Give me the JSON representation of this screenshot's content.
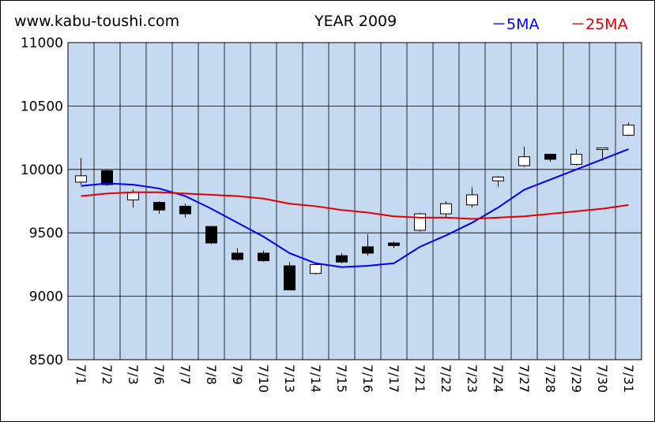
{
  "header": {
    "site": "www.kabu-toushi.com",
    "title": "YEAR 2009",
    "legend_5ma": "－5MA",
    "legend_25ma": "－25MA"
  },
  "colors": {
    "plot_bg": "#c5d9f1",
    "ma5": "#0000ff",
    "ma25": "#e00000",
    "up_candle": "#ffffff",
    "down_candle": "#000000"
  },
  "chart_data": {
    "type": "candlestick",
    "title": "YEAR 2009",
    "ylim": [
      8500,
      11000
    ],
    "yticks": [
      8500,
      9000,
      9500,
      10000,
      10500,
      11000
    ],
    "grid": true,
    "legend_position": "top-right",
    "categories": [
      "7/1",
      "7/2",
      "7/3",
      "7/6",
      "7/7",
      "7/8",
      "7/9",
      "7/10",
      "7/13",
      "7/14",
      "7/15",
      "7/16",
      "7/17",
      "7/21",
      "7/22",
      "7/23",
      "7/24",
      "7/27",
      "7/28",
      "7/29",
      "7/30",
      "7/31"
    ],
    "ohlc": [
      {
        "open": 9900,
        "high": 10090,
        "low": 9880,
        "close": 9950
      },
      {
        "open": 9990,
        "high": 10000,
        "low": 9870,
        "close": 9880
      },
      {
        "open": 9760,
        "high": 9840,
        "low": 9700,
        "close": 9820
      },
      {
        "open": 9740,
        "high": 9750,
        "low": 9650,
        "close": 9680
      },
      {
        "open": 9710,
        "high": 9730,
        "low": 9620,
        "close": 9650
      },
      {
        "open": 9550,
        "high": 9550,
        "low": 9410,
        "close": 9420
      },
      {
        "open": 9340,
        "high": 9380,
        "low": 9280,
        "close": 9290
      },
      {
        "open": 9340,
        "high": 9360,
        "low": 9270,
        "close": 9280
      },
      {
        "open": 9240,
        "high": 9270,
        "low": 9050,
        "close": 9050
      },
      {
        "open": 9180,
        "high": 9260,
        "low": 9170,
        "close": 9250
      },
      {
        "open": 9320,
        "high": 9340,
        "low": 9260,
        "close": 9270
      },
      {
        "open": 9390,
        "high": 9490,
        "low": 9320,
        "close": 9340
      },
      {
        "open": 9420,
        "high": 9430,
        "low": 9380,
        "close": 9400
      },
      {
        "open": 9520,
        "high": 9660,
        "low": 9510,
        "close": 9650
      },
      {
        "open": 9650,
        "high": 9750,
        "low": 9620,
        "close": 9730
      },
      {
        "open": 9720,
        "high": 9860,
        "low": 9700,
        "close": 9800
      },
      {
        "open": 9910,
        "high": 9950,
        "low": 9860,
        "close": 9940
      },
      {
        "open": 10030,
        "high": 10180,
        "low": 10020,
        "close": 10100
      },
      {
        "open": 10120,
        "high": 10120,
        "low": 10060,
        "close": 10080
      },
      {
        "open": 10040,
        "high": 10160,
        "low": 10030,
        "close": 10120
      },
      {
        "open": 10160,
        "high": 10170,
        "low": 10070,
        "close": 10170
      },
      {
        "open": 10270,
        "high": 10370,
        "low": 10260,
        "close": 10350
      }
    ],
    "series": [
      {
        "name": "5MA",
        "values": [
          9870,
          9890,
          9880,
          9850,
          9790,
          9690,
          9580,
          9470,
          9340,
          9260,
          9230,
          9240,
          9260,
          9390,
          9480,
          9580,
          9700,
          9840,
          9920,
          10000,
          10080,
          10160
        ]
      },
      {
        "name": "25MA",
        "values": [
          9790,
          9810,
          9820,
          9820,
          9810,
          9800,
          9790,
          9770,
          9730,
          9710,
          9680,
          9660,
          9630,
          9620,
          9620,
          9610,
          9620,
          9630,
          9650,
          9670,
          9690,
          9720
        ]
      }
    ]
  }
}
